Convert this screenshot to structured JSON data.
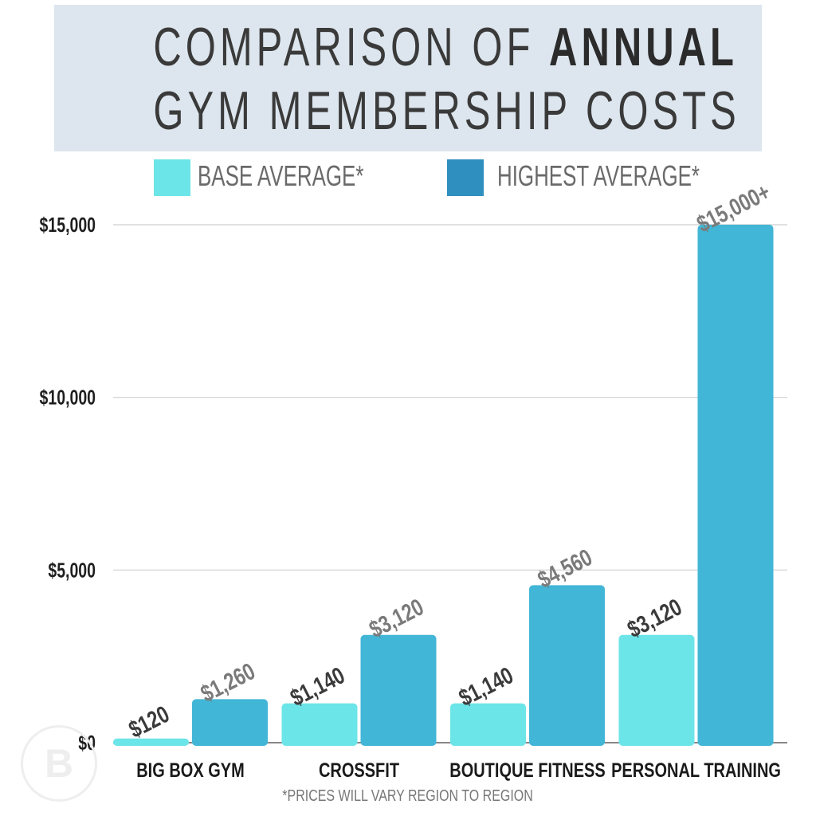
{
  "title": {
    "line1_prefix": "COMPARISON OF ",
    "line1_bold": "ANNUAL",
    "line2": "GYM MEMBERSHIP COSTS"
  },
  "legend": [
    {
      "label": "BASE AVERAGE*",
      "color": "#6ce5e8"
    },
    {
      "label": "HIGHEST AVERAGE*",
      "color": "#2f8fbf"
    }
  ],
  "footnote": "*PRICES WILL VARY REGION TO REGION",
  "logo_glyph": "B",
  "chart_data": {
    "type": "bar",
    "title": "COMPARISON OF ANNUAL GYM MEMBERSHIP COSTS",
    "categories": [
      "BIG BOX GYM",
      "CROSSFIT",
      "BOUTIQUE FITNESS",
      "PERSONAL TRAINING"
    ],
    "series": [
      {
        "name": "BASE AVERAGE*",
        "values": [
          120,
          1140,
          1140,
          3120
        ],
        "labels": [
          "$120",
          "$1,140",
          "$1,140",
          "$3,120"
        ],
        "color": "#6ce5e8",
        "label_color": "#3a3a3a"
      },
      {
        "name": "HIGHEST AVERAGE*",
        "values": [
          1260,
          3120,
          4560,
          15000
        ],
        "labels": [
          "$1,260",
          "$3,120",
          "$4,560",
          "$15,000+"
        ],
        "color": "#42b6d6",
        "label_color": "#7a7a7a"
      }
    ],
    "yticks": [
      0,
      5000,
      10000,
      15000
    ],
    "ytick_labels": [
      "$0",
      "$5,000",
      "$10,000",
      "$15,000"
    ],
    "ylim": [
      0,
      15000
    ],
    "grid": true,
    "legend_position": "top"
  }
}
